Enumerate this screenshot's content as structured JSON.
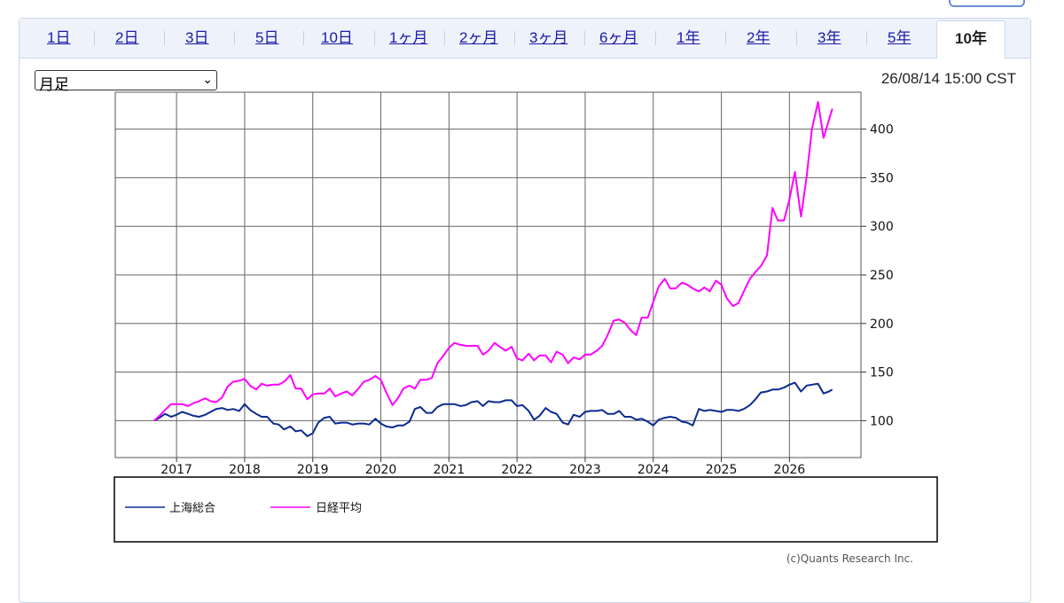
{
  "tabs": [
    "1日",
    "2日",
    "3日",
    "5日",
    "10日",
    "1ヶ月",
    "2ヶ月",
    "3ヶ月",
    "6ヶ月",
    "1年",
    "2年",
    "3年",
    "5年",
    "10年"
  ],
  "active_tab": "10年",
  "interval_select": {
    "value": "月足"
  },
  "timestamp": "26/08/14 15:00 CST",
  "credit": "(c)Quants Research Inc.",
  "colors": {
    "shanghai": "#0b2a8f",
    "nikkei": "#ff00ff",
    "tab_link": "#1a1aa6"
  },
  "chart_data": {
    "type": "line",
    "title": "",
    "xlabel": "",
    "ylabel": "",
    "x_ticks": [
      "2017",
      "2018",
      "2019",
      "2020",
      "2021",
      "2022",
      "2023",
      "2024",
      "2025",
      "2026"
    ],
    "y_ticks": [
      100,
      150,
      200,
      250,
      300,
      350,
      400
    ],
    "xlim": [
      2016.1,
      2027.05
    ],
    "ylim": [
      62,
      438
    ],
    "grid": true,
    "y_axis_side": "right",
    "legend_position": "bottom",
    "series": [
      {
        "name": "上海総合",
        "color": "#0b2a8f",
        "points": [
          [
            2016.67,
            100
          ],
          [
            2016.75,
            103
          ],
          [
            2016.83,
            107
          ],
          [
            2016.92,
            104
          ],
          [
            2017.0,
            106
          ],
          [
            2017.08,
            109
          ],
          [
            2017.17,
            107
          ],
          [
            2017.25,
            105
          ],
          [
            2017.33,
            104
          ],
          [
            2017.42,
            106
          ],
          [
            2017.5,
            109
          ],
          [
            2017.58,
            112
          ],
          [
            2017.67,
            113
          ],
          [
            2017.75,
            111
          ],
          [
            2017.83,
            112
          ],
          [
            2017.92,
            110
          ],
          [
            2018.0,
            117
          ],
          [
            2018.08,
            111
          ],
          [
            2018.17,
            107
          ],
          [
            2018.25,
            104
          ],
          [
            2018.33,
            104
          ],
          [
            2018.42,
            97
          ],
          [
            2018.5,
            96
          ],
          [
            2018.58,
            91
          ],
          [
            2018.67,
            94
          ],
          [
            2018.75,
            89
          ],
          [
            2018.83,
            90
          ],
          [
            2018.92,
            84
          ],
          [
            2019.0,
            87
          ],
          [
            2019.08,
            98
          ],
          [
            2019.17,
            103
          ],
          [
            2019.25,
            104
          ],
          [
            2019.33,
            97
          ],
          [
            2019.42,
            98
          ],
          [
            2019.5,
            98
          ],
          [
            2019.58,
            96
          ],
          [
            2019.67,
            97
          ],
          [
            2019.75,
            97
          ],
          [
            2019.83,
            96
          ],
          [
            2019.92,
            102
          ],
          [
            2020.0,
            97
          ],
          [
            2020.08,
            94
          ],
          [
            2020.17,
            93
          ],
          [
            2020.25,
            95
          ],
          [
            2020.33,
            95
          ],
          [
            2020.42,
            99
          ],
          [
            2020.5,
            112
          ],
          [
            2020.58,
            114
          ],
          [
            2020.67,
            108
          ],
          [
            2020.75,
            108
          ],
          [
            2020.83,
            114
          ],
          [
            2020.92,
            117
          ],
          [
            2021.0,
            117
          ],
          [
            2021.08,
            117
          ],
          [
            2021.17,
            115
          ],
          [
            2021.25,
            116
          ],
          [
            2021.33,
            119
          ],
          [
            2021.42,
            120
          ],
          [
            2021.5,
            115
          ],
          [
            2021.58,
            120
          ],
          [
            2021.67,
            119
          ],
          [
            2021.75,
            119
          ],
          [
            2021.83,
            121
          ],
          [
            2021.92,
            121
          ],
          [
            2022.0,
            115
          ],
          [
            2022.08,
            116
          ],
          [
            2022.17,
            110
          ],
          [
            2022.25,
            101
          ],
          [
            2022.33,
            105
          ],
          [
            2022.42,
            113
          ],
          [
            2022.5,
            109
          ],
          [
            2022.58,
            107
          ],
          [
            2022.67,
            98
          ],
          [
            2022.75,
            96
          ],
          [
            2022.83,
            106
          ],
          [
            2022.92,
            104
          ],
          [
            2023.0,
            109
          ],
          [
            2023.08,
            110
          ],
          [
            2023.17,
            110
          ],
          [
            2023.25,
            111
          ],
          [
            2023.33,
            107
          ],
          [
            2023.42,
            107
          ],
          [
            2023.5,
            110
          ],
          [
            2023.58,
            104
          ],
          [
            2023.67,
            104
          ],
          [
            2023.75,
            101
          ],
          [
            2023.83,
            102
          ],
          [
            2023.92,
            99
          ],
          [
            2024.0,
            95
          ],
          [
            2024.08,
            101
          ],
          [
            2024.17,
            103
          ],
          [
            2024.25,
            104
          ],
          [
            2024.33,
            103
          ],
          [
            2024.42,
            99
          ],
          [
            2024.5,
            98
          ],
          [
            2024.58,
            95
          ],
          [
            2024.67,
            112
          ],
          [
            2024.75,
            110
          ],
          [
            2024.83,
            111
          ],
          [
            2024.92,
            110
          ],
          [
            2025.0,
            109
          ],
          [
            2025.08,
            111
          ],
          [
            2025.17,
            111
          ],
          [
            2025.25,
            110
          ],
          [
            2025.33,
            112
          ],
          [
            2025.42,
            116
          ],
          [
            2025.5,
            122
          ],
          [
            2025.58,
            129
          ],
          [
            2025.67,
            130
          ],
          [
            2025.75,
            132
          ],
          [
            2025.83,
            132
          ],
          [
            2025.92,
            134
          ],
          [
            2026.0,
            137
          ],
          [
            2026.08,
            139
          ],
          [
            2026.17,
            130
          ],
          [
            2026.25,
            136
          ],
          [
            2026.33,
            137
          ],
          [
            2026.42,
            138
          ],
          [
            2026.5,
            128
          ],
          [
            2026.58,
            130
          ],
          [
            2026.63,
            132
          ]
        ]
      },
      {
        "name": "日経平均",
        "color": "#ff00ff",
        "points": [
          [
            2016.67,
            100
          ],
          [
            2016.75,
            105
          ],
          [
            2016.83,
            111
          ],
          [
            2016.92,
            117
          ],
          [
            2017.0,
            117
          ],
          [
            2017.08,
            117
          ],
          [
            2017.17,
            115
          ],
          [
            2017.25,
            118
          ],
          [
            2017.33,
            120
          ],
          [
            2017.42,
            123
          ],
          [
            2017.5,
            120
          ],
          [
            2017.58,
            119
          ],
          [
            2017.67,
            124
          ],
          [
            2017.75,
            135
          ],
          [
            2017.83,
            140
          ],
          [
            2017.92,
            141
          ],
          [
            2018.0,
            143
          ],
          [
            2018.08,
            136
          ],
          [
            2018.17,
            132
          ],
          [
            2018.25,
            138
          ],
          [
            2018.33,
            136
          ],
          [
            2018.42,
            137
          ],
          [
            2018.5,
            137
          ],
          [
            2018.58,
            140
          ],
          [
            2018.67,
            147
          ],
          [
            2018.75,
            133
          ],
          [
            2018.83,
            133
          ],
          [
            2018.92,
            122
          ],
          [
            2019.0,
            127
          ],
          [
            2019.08,
            128
          ],
          [
            2019.17,
            128
          ],
          [
            2019.25,
            133
          ],
          [
            2019.33,
            125
          ],
          [
            2019.42,
            128
          ],
          [
            2019.5,
            130
          ],
          [
            2019.58,
            126
          ],
          [
            2019.67,
            133
          ],
          [
            2019.75,
            140
          ],
          [
            2019.83,
            142
          ],
          [
            2019.92,
            146
          ],
          [
            2020.0,
            142
          ],
          [
            2020.08,
            129
          ],
          [
            2020.17,
            116
          ],
          [
            2020.25,
            123
          ],
          [
            2020.33,
            133
          ],
          [
            2020.42,
            136
          ],
          [
            2020.5,
            133
          ],
          [
            2020.58,
            142
          ],
          [
            2020.67,
            142
          ],
          [
            2020.75,
            144
          ],
          [
            2020.83,
            159
          ],
          [
            2020.92,
            167
          ],
          [
            2021.0,
            175
          ],
          [
            2021.08,
            180
          ],
          [
            2021.17,
            178
          ],
          [
            2021.25,
            177
          ],
          [
            2021.33,
            177
          ],
          [
            2021.42,
            177
          ],
          [
            2021.5,
            168
          ],
          [
            2021.58,
            172
          ],
          [
            2021.67,
            180
          ],
          [
            2021.75,
            176
          ],
          [
            2021.83,
            172
          ],
          [
            2021.92,
            176
          ],
          [
            2022.0,
            164
          ],
          [
            2022.08,
            162
          ],
          [
            2022.17,
            169
          ],
          [
            2022.25,
            162
          ],
          [
            2022.33,
            167
          ],
          [
            2022.42,
            167
          ],
          [
            2022.5,
            160
          ],
          [
            2022.58,
            171
          ],
          [
            2022.67,
            168
          ],
          [
            2022.75,
            159
          ],
          [
            2022.83,
            165
          ],
          [
            2022.92,
            163
          ],
          [
            2023.0,
            168
          ],
          [
            2023.08,
            168
          ],
          [
            2023.17,
            172
          ],
          [
            2023.25,
            177
          ],
          [
            2023.33,
            188
          ],
          [
            2023.42,
            203
          ],
          [
            2023.5,
            204
          ],
          [
            2023.58,
            201
          ],
          [
            2023.67,
            193
          ],
          [
            2023.75,
            188
          ],
          [
            2023.83,
            206
          ],
          [
            2023.92,
            206
          ],
          [
            2024.0,
            222
          ],
          [
            2024.08,
            238
          ],
          [
            2024.17,
            246
          ],
          [
            2024.25,
            236
          ],
          [
            2024.33,
            236
          ],
          [
            2024.42,
            242
          ],
          [
            2024.5,
            240
          ],
          [
            2024.58,
            236
          ],
          [
            2024.67,
            233
          ],
          [
            2024.75,
            237
          ],
          [
            2024.83,
            233
          ],
          [
            2024.92,
            244
          ],
          [
            2025.0,
            240
          ],
          [
            2025.08,
            226
          ],
          [
            2025.17,
            218
          ],
          [
            2025.25,
            221
          ],
          [
            2025.33,
            233
          ],
          [
            2025.42,
            246
          ],
          [
            2025.5,
            253
          ],
          [
            2025.58,
            259
          ],
          [
            2025.67,
            270
          ],
          [
            2025.75,
            319
          ],
          [
            2025.83,
            306
          ],
          [
            2025.92,
            306
          ],
          [
            2026.0,
            328
          ],
          [
            2026.08,
            356
          ],
          [
            2026.17,
            310
          ],
          [
            2026.25,
            350
          ],
          [
            2026.33,
            400
          ],
          [
            2026.42,
            428
          ],
          [
            2026.5,
            391
          ],
          [
            2026.63,
            421
          ]
        ]
      }
    ]
  }
}
